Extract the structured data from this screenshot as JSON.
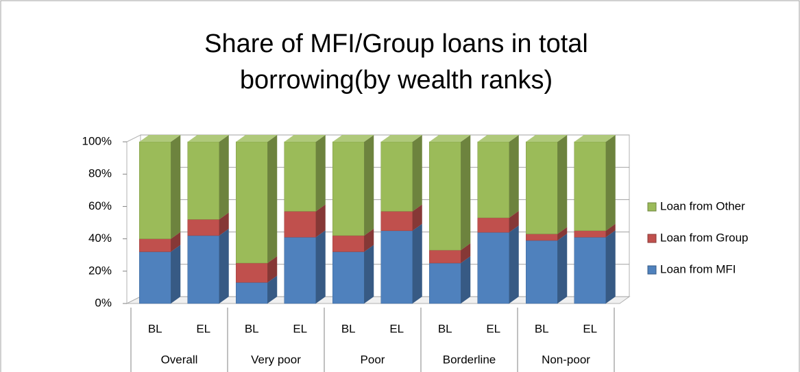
{
  "chart_data": {
    "type": "stacked-bar-3d",
    "title": "Share of MFI/Group loans in total borrowing(by wealth ranks)",
    "categories": [
      "BL",
      "EL",
      "BL",
      "EL",
      "BL",
      "EL",
      "BL",
      "EL",
      "BL",
      "EL"
    ],
    "groups": [
      "Overall",
      "Very poor",
      "Poor",
      "Borderline",
      "Non-poor"
    ],
    "series": [
      {
        "name": "Loan from MFI",
        "color": "#4f81bd",
        "values": [
          32,
          42,
          13,
          41,
          32,
          45,
          25,
          44,
          39,
          41
        ]
      },
      {
        "name": "Loan from Group",
        "color": "#c0504d",
        "values": [
          8,
          10,
          12,
          16,
          10,
          12,
          8,
          9,
          4,
          4
        ]
      },
      {
        "name": "Loan from Other",
        "color": "#9bbb59",
        "values": [
          60,
          48,
          75,
          43,
          58,
          43,
          67,
          47,
          57,
          55
        ]
      }
    ],
    "ylim": [
      0,
      100
    ],
    "yticks": [
      {
        "value": 0,
        "label": "0%"
      },
      {
        "value": 20,
        "label": "20%"
      },
      {
        "value": 40,
        "label": "40%"
      },
      {
        "value": 60,
        "label": "60%"
      },
      {
        "value": 80,
        "label": "80%"
      },
      {
        "value": 100,
        "label": "100%"
      }
    ],
    "grid": true,
    "legend": "right"
  }
}
